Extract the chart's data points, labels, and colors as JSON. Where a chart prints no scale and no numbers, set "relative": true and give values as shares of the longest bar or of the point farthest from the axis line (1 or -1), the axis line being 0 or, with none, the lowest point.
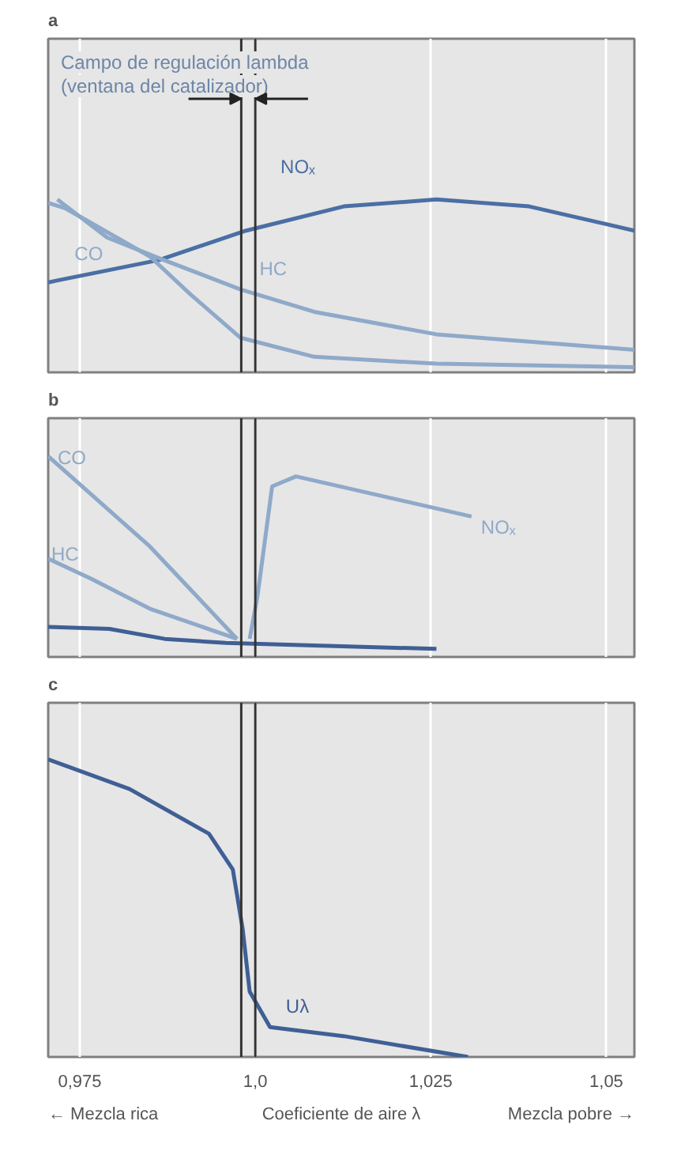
{
  "chart_data": [
    {
      "type": "line",
      "title": "a",
      "relative": true,
      "xlim": [
        0.9705,
        1.054
      ],
      "tick_labels": false,
      "grid": "x",
      "xticks": [
        {
          "value": 0.975,
          "label": null
        },
        {
          "value": 1.0,
          "label": null
        },
        {
          "value": 1.025,
          "label": null
        },
        {
          "value": 1.05,
          "label": null
        }
      ],
      "annotations": [
        "Campo de regulación lambda",
        "(ventana del catalizador)"
      ],
      "ref_lines": [
        {
          "axis": "x",
          "value": 0.998,
          "color": "#333333"
        },
        {
          "axis": "x",
          "value": 1.0,
          "color": "#333333"
        }
      ],
      "series": [
        {
          "name": "NOₓ",
          "color": "#4a6fa5",
          "x": [
            0.9705,
            0.9716,
            0.9863,
            0.9987,
            1.0126,
            1.0258,
            1.039,
            1.054
          ],
          "values": [
            0.52,
            0.53,
            0.65,
            0.82,
            0.96,
            1.0,
            0.96,
            0.82
          ]
        },
        {
          "name": "HC",
          "color": "#8fa9c9",
          "x": [
            0.9718,
            0.9789,
            0.9863,
            0.9979,
            1.0084,
            1.0258,
            1.054
          ],
          "values": [
            1.0,
            0.78,
            0.66,
            0.48,
            0.35,
            0.22,
            0.13
          ]
        },
        {
          "name": "CO",
          "color": "#8fa9c9",
          "x": [
            0.9705,
            0.9729,
            0.985,
            0.9908,
            0.9979,
            1.0084,
            1.0258,
            1.054
          ],
          "values": [
            0.98,
            0.95,
            0.67,
            0.45,
            0.2,
            0.09,
            0.05,
            0.03
          ]
        }
      ]
    },
    {
      "type": "line",
      "title": "b",
      "relative": true,
      "xlim": [
        0.9705,
        1.054
      ],
      "tick_labels": false,
      "grid": "x",
      "xticks": [
        {
          "value": 0.975,
          "label": null
        },
        {
          "value": 1.0,
          "label": null
        },
        {
          "value": 1.025,
          "label": null
        },
        {
          "value": 1.05,
          "label": null
        }
      ],
      "ref_lines": [
        {
          "axis": "x",
          "value": 0.998,
          "color": "#333333"
        },
        {
          "axis": "x",
          "value": 1.0,
          "color": "#333333"
        }
      ],
      "series": [
        {
          "name": "CO",
          "color": "#8fa9c9",
          "x": [
            0.9705,
            0.985,
            0.9974
          ],
          "values": [
            1.0,
            0.55,
            0.09
          ]
        },
        {
          "name": "HC",
          "color": "#8fa9c9",
          "x": [
            0.9705,
            0.9766,
            0.985,
            0.9974
          ],
          "values": [
            0.49,
            0.39,
            0.24,
            0.09
          ]
        },
        {
          "color": "#3f5f95",
          "x": [
            0.9705,
            0.9792,
            0.9871,
            0.9958,
            1.0258
          ],
          "values": [
            0.15,
            0.14,
            0.09,
            0.07,
            0.04
          ]
        },
        {
          "name": "NOₓ",
          "color": "#8fa9c9",
          "x": [
            0.9992,
            1.0003,
            1.0024,
            1.0058,
            1.0308
          ],
          "values": [
            0.09,
            0.3,
            0.85,
            0.9,
            0.7
          ]
        }
      ]
    },
    {
      "type": "line",
      "title": "c",
      "relative": true,
      "xlim": [
        0.9705,
        1.054
      ],
      "tick_labels": "x",
      "grid": "x",
      "xlabel": "Coeficiente de aire λ",
      "xticks": [
        {
          "value": 0.975,
          "label": "0,975"
        },
        {
          "value": 1.0,
          "label": "1,0"
        },
        {
          "value": 1.025,
          "label": "1,025"
        },
        {
          "value": 1.05,
          "label": "1,05"
        }
      ],
      "annotations": [
        "← Mezcla rica",
        "Mezcla pobre →"
      ],
      "ref_lines": [
        {
          "axis": "x",
          "value": 0.998,
          "color": "#333333"
        },
        {
          "axis": "x",
          "value": 1.0,
          "color": "#333333"
        }
      ],
      "series": [
        {
          "name": "Uλ",
          "color": "#3f5f95",
          "x": [
            0.9705,
            0.9821,
            0.9934,
            0.9968,
            0.9982,
            0.9992,
            1.0021,
            1.0126,
            1.0303
          ],
          "values": [
            1.0,
            0.9,
            0.75,
            0.63,
            0.43,
            0.22,
            0.1,
            0.07,
            0.0
          ]
        }
      ]
    }
  ]
}
